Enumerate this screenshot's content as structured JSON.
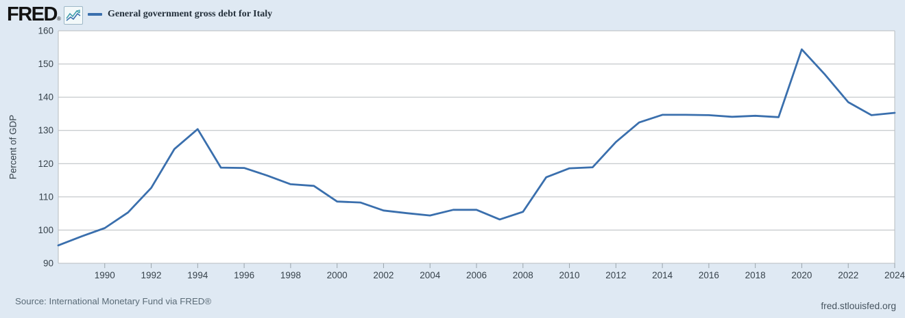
{
  "header": {
    "logo_text": "FRED",
    "logo_registered": "®",
    "logo_icon": "sparkline-chart-icon",
    "legend": {
      "label": "General government gross debt for Italy"
    }
  },
  "footer": {
    "source": "Source: International Monetary Fund via FRED®",
    "site": "fred.stlouisfed.org"
  },
  "colors": {
    "background": "#dfe9f3",
    "plot_background": "#ffffff",
    "line": "#3a6fad",
    "gridline": "#b7bcbf",
    "tick_mark": "#9aa4ab",
    "axis_text": "#37424b",
    "source_text": "#5a6b77",
    "legend_text": "#24303b",
    "icon_teal": "#45a0ae",
    "icon_blue": "#3a6fad"
  },
  "chart_data": {
    "type": "line",
    "title": "General government gross debt for Italy",
    "xlabel": "",
    "ylabel": "Percent of GDP",
    "ylim": [
      90,
      160
    ],
    "xlim": [
      1988,
      2024
    ],
    "yticks": [
      90,
      100,
      110,
      120,
      130,
      140,
      150,
      160
    ],
    "xticks": [
      1990,
      1992,
      1994,
      1996,
      1998,
      2000,
      2002,
      2004,
      2006,
      2008,
      2010,
      2012,
      2014,
      2016,
      2018,
      2020,
      2022,
      2024
    ],
    "grid": true,
    "legend_position": "top-left",
    "x": [
      1988,
      1989,
      1990,
      1991,
      1992,
      1993,
      1994,
      1995,
      1996,
      1997,
      1998,
      1999,
      2000,
      2001,
      2002,
      2003,
      2004,
      2005,
      2006,
      2007,
      2008,
      2009,
      2010,
      2011,
      2012,
      2013,
      2014,
      2015,
      2016,
      2017,
      2018,
      2019,
      2020,
      2021,
      2022,
      2023,
      2024
    ],
    "values": [
      95.4,
      98.1,
      100.6,
      105.3,
      112.7,
      124.4,
      130.4,
      118.8,
      118.7,
      116.4,
      113.8,
      113.3,
      108.6,
      108.3,
      105.9,
      105.1,
      104.4,
      106.1,
      106.1,
      103.2,
      105.5,
      115.9,
      118.6,
      118.9,
      126.5,
      132.4,
      134.7,
      134.7,
      134.6,
      134.1,
      134.4,
      134.0,
      154.4,
      146.8,
      138.5,
      134.6,
      135.3
    ],
    "series": [
      {
        "name": "General government gross debt for Italy",
        "values_ref": "values"
      }
    ]
  }
}
